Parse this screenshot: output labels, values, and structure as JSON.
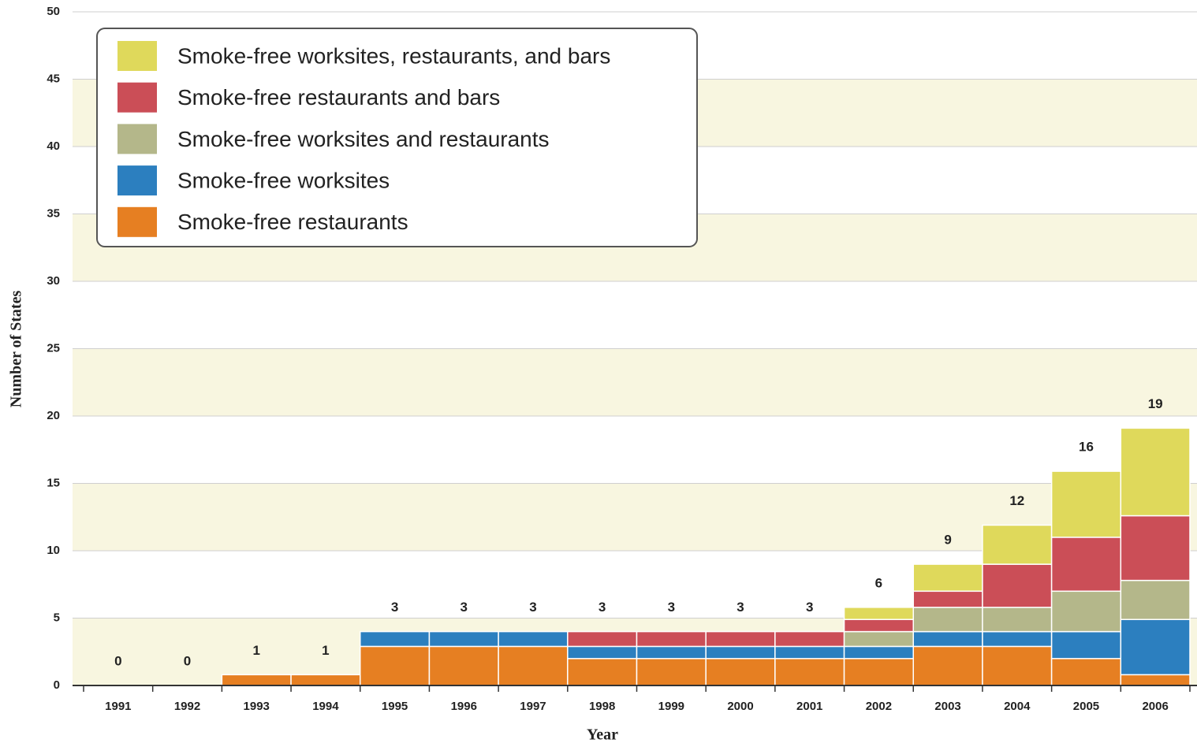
{
  "chart_data": {
    "type": "stacked_bar",
    "x_label": "Year",
    "y_label": "Number of States",
    "categories": [
      "1991",
      "1992",
      "1993",
      "1994",
      "1995",
      "1996",
      "1997",
      "1998",
      "1999",
      "2000",
      "2001",
      "2002",
      "2003",
      "2004",
      "2005",
      "2006"
    ],
    "series": [
      {
        "name": "Smoke-free restaurants",
        "color": "#e67f22",
        "values": [
          0,
          0,
          0.8,
          0.8,
          2.9,
          2.9,
          2.9,
          2.0,
          2.0,
          2.0,
          2.0,
          2.0,
          2.9,
          2.9,
          2.0,
          0.8
        ]
      },
      {
        "name": "Smoke-free worksites",
        "color": "#2c7fbf",
        "values": [
          0,
          0,
          0,
          0,
          1.1,
          1.1,
          1.1,
          0.9,
          0.9,
          0.9,
          0.9,
          0.9,
          1.1,
          1.1,
          2.0,
          4.1
        ]
      },
      {
        "name": "Smoke-free worksites and restaurants",
        "color": "#b4b78a",
        "values": [
          0,
          0,
          0,
          0,
          0,
          0,
          0,
          0,
          0,
          0,
          0,
          1.1,
          1.8,
          1.8,
          3.0,
          2.9
        ]
      },
      {
        "name": "Smoke-free restaurants and bars",
        "color": "#cb4e57",
        "values": [
          0,
          0,
          0,
          0,
          0,
          0,
          0,
          1.1,
          1.1,
          1.1,
          1.1,
          0.9,
          1.2,
          3.2,
          4.0,
          4.8
        ]
      },
      {
        "name": "Smoke-free worksites, restaurants, and bars",
        "color": "#dfd95b",
        "values": [
          0,
          0,
          0,
          0,
          0,
          0,
          0,
          0,
          0,
          0,
          0,
          0.9,
          2.0,
          2.9,
          4.9,
          6.5
        ]
      }
    ],
    "totals": [
      0,
      0,
      1,
      1,
      3,
      3,
      3,
      3,
      3,
      3,
      3,
      6,
      9,
      12,
      16,
      19
    ],
    "ylim": [
      0,
      50
    ],
    "yticks": [
      0,
      5,
      10,
      15,
      20,
      25,
      30,
      35,
      40,
      45,
      50
    ],
    "grid": true,
    "band_color": "#f8f6e0",
    "legend_position": "upper-left"
  }
}
